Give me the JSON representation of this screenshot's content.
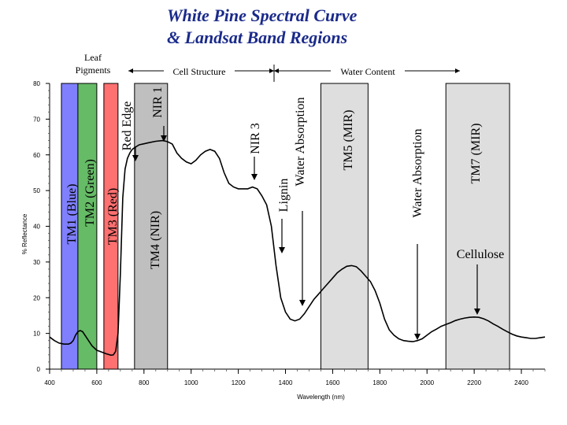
{
  "title_line1": "White Pine Spectral Curve",
  "title_line2": "& Landsat Band Regions",
  "chart_data": {
    "type": "line",
    "title": "White Pine Spectral Curve & Landsat Band Regions",
    "xlabel": "Wavelength (nm)",
    "ylabel": "% Reflectance",
    "xlim": [
      400,
      2500
    ],
    "ylim": [
      0,
      80
    ],
    "x_ticks": [
      400,
      600,
      800,
      1000,
      1200,
      1400,
      1600,
      1800,
      2000,
      2200,
      2400
    ],
    "x_tick_labels": [
      "400",
      "600",
      "800",
      "1000",
      "1200",
      "1400",
      "1600",
      "1800",
      "2000",
      "2200",
      "2400"
    ],
    "y_ticks": [
      0,
      10,
      20,
      30,
      40,
      50,
      60,
      70,
      80
    ],
    "y_tick_labels": [
      "0",
      "10",
      "20",
      "30",
      "40",
      "50",
      "60",
      "70",
      "80"
    ],
    "series": [
      {
        "name": "White Pine",
        "color": "#000000",
        "x": [
          400,
          420,
          440,
          460,
          470,
          480,
          490,
          500,
          510,
          520,
          530,
          540,
          550,
          560,
          570,
          580,
          600,
          620,
          640,
          660,
          670,
          680,
          690,
          700,
          710,
          720,
          730,
          740,
          750,
          760,
          780,
          800,
          820,
          850,
          880,
          900,
          920,
          940,
          960,
          980,
          1000,
          1020,
          1040,
          1060,
          1080,
          1100,
          1120,
          1140,
          1160,
          1180,
          1200,
          1220,
          1240,
          1260,
          1280,
          1300,
          1320,
          1340,
          1360,
          1380,
          1400,
          1420,
          1440,
          1460,
          1480,
          1500,
          1520,
          1540,
          1560,
          1580,
          1600,
          1620,
          1640,
          1660,
          1680,
          1700,
          1720,
          1740,
          1760,
          1780,
          1800,
          1820,
          1840,
          1860,
          1880,
          1900,
          1920,
          1940,
          1960,
          1980,
          2000,
          2020,
          2040,
          2060,
          2080,
          2100,
          2120,
          2140,
          2160,
          2180,
          2200,
          2220,
          2240,
          2260,
          2280,
          2300,
          2320,
          2340,
          2360,
          2380,
          2400,
          2420,
          2440,
          2460,
          2480,
          2500
        ],
        "y": [
          9,
          8,
          7.3,
          7,
          7,
          7,
          7.3,
          8,
          9.5,
          10.5,
          10.8,
          10.5,
          9.5,
          8.5,
          7.5,
          6.5,
          5.3,
          4.8,
          4.3,
          3.9,
          4,
          5,
          10,
          27,
          48,
          56,
          59,
          60.5,
          61.5,
          62,
          62.8,
          63.1,
          63.4,
          63.8,
          64,
          63.7,
          63,
          60.5,
          59,
          58,
          57.5,
          58.5,
          60,
          61,
          61.5,
          61,
          59,
          55,
          52,
          51,
          50.5,
          50.5,
          50.5,
          51,
          50.5,
          48.5,
          46,
          40,
          29,
          20,
          16,
          14,
          13.5,
          14,
          15.5,
          17.5,
          19.5,
          21,
          22.5,
          24,
          25.5,
          27,
          28,
          28.8,
          29,
          28.7,
          27.5,
          26,
          24.5,
          22,
          18.5,
          14,
          11,
          9.5,
          8.5,
          8,
          7.8,
          7.7,
          8,
          8.5,
          9.5,
          10.5,
          11.2,
          12,
          12.5,
          13,
          13.6,
          14,
          14.3,
          14.5,
          14.6,
          14.5,
          14.1,
          13.5,
          12.7,
          12,
          11.2,
          10.5,
          9.8,
          9.3,
          9,
          8.8,
          8.6,
          8.6,
          8.8,
          9
        ]
      }
    ],
    "band_regions": [
      {
        "label": "TM1 (Blue)",
        "from": 450,
        "to": 520,
        "fill": "#8080ff"
      },
      {
        "label": "TM2 (Green)",
        "from": 520,
        "to": 600,
        "fill": "#66bb66"
      },
      {
        "label": "TM3 (Red)",
        "from": 630,
        "to": 690,
        "fill": "#ff7070"
      },
      {
        "label": "TM4 (NIR)",
        "from": 760,
        "to": 900,
        "fill": "#bfbfbf"
      },
      {
        "label": "TM5 (MIR)",
        "from": 1550,
        "to": 1750,
        "fill": "#dedede"
      },
      {
        "label": "TM7 (MIR)",
        "from": 2080,
        "to": 2350,
        "fill": "#dedede"
      }
    ],
    "annotations": [
      {
        "label": "Red Edge",
        "x": 700,
        "y": 59
      },
      {
        "label": "NIR 1",
        "x": 900,
        "y": 63
      },
      {
        "label": "NIR 3",
        "x": 1260,
        "y": 60
      },
      {
        "label": "Lignin",
        "x": 1340,
        "y": 31
      },
      {
        "label": "Water Absorption",
        "x": 1380,
        "y": 17
      },
      {
        "label": "Water Absorption",
        "x": 1960,
        "y": 9
      },
      {
        "label": "Cellulose",
        "x": 2220,
        "y": 16
      }
    ],
    "top_regions": [
      {
        "label": "Leaf Pigments",
        "from": 400,
        "to": 700
      },
      {
        "label": "Cell Structure",
        "from": 700,
        "to": 1300
      },
      {
        "label": "Water Content",
        "from": 1300,
        "to": 2500
      }
    ]
  }
}
